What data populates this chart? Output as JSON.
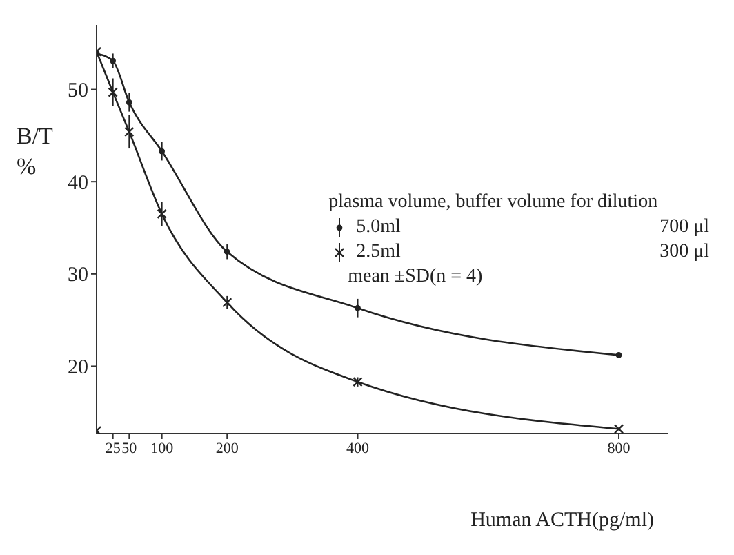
{
  "chart_data": {
    "type": "line",
    "xlabel": "Human ACTH(pg/ml)",
    "ylabel": "B/T %",
    "legend_title": "plasma volume, buffer volume for dilution",
    "xlim": [
      0,
      875
    ],
    "xticks": [
      25,
      50,
      100,
      200,
      400,
      800
    ],
    "ylim": [
      12.7,
      57
    ],
    "yticks": [
      20,
      30,
      40,
      50
    ],
    "legend": "right",
    "line_style": "solid",
    "series": [
      {
        "name": "5.0ml",
        "color": "#222222",
        "marker": "circle",
        "x": [
          0,
          25,
          50,
          100,
          200,
          400,
          800
        ],
        "values": [
          53.9,
          53.1,
          48.6,
          43.3,
          32.4,
          26.3,
          21.2
        ],
        "errors": [
          1.0,
          0.8,
          1.0,
          1.0,
          0.8,
          1.0,
          null
        ]
      },
      {
        "name": "2.5ml",
        "color": "#222222",
        "marker": "cross",
        "x": [
          0,
          25,
          50,
          100,
          200,
          400,
          800
        ],
        "values": [
          54.1,
          49.7,
          45.4,
          36.5,
          26.9,
          18.3,
          13.2
        ],
        "errors": [
          1.2,
          1.5,
          1.8,
          1.3,
          0.7,
          0.5,
          null
        ]
      },
      {
        "type": "scatter",
        "color": "#222222",
        "marker": "cross",
        "x": [
          0
        ],
        "values": [
          13
        ]
      }
    ],
    "annotations": [
      "700 μl",
      "300 μl",
      "mean ±SD(n = 4)"
    ]
  }
}
